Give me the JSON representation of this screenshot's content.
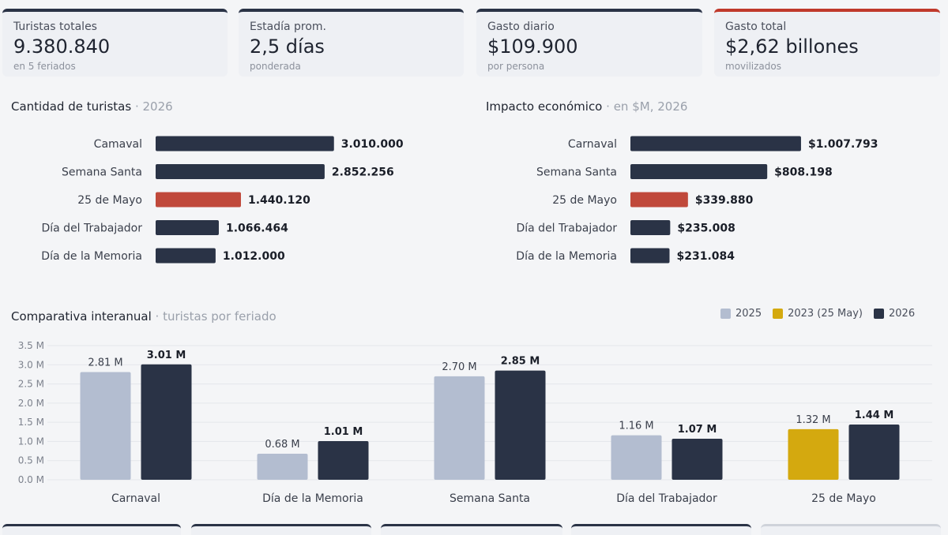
{
  "kpis": [
    {
      "label": "Turistas totales",
      "value": "9.380.840",
      "sub": "en 5 feriados",
      "accent": false
    },
    {
      "label": "Estadía prom.",
      "value": "2,5 días",
      "sub": "ponderada",
      "accent": false
    },
    {
      "label": "Gasto diario",
      "value": "$109.900",
      "sub": "por persona",
      "accent": false
    },
    {
      "label": "Gasto total",
      "value": "$2,62 billones",
      "sub": "movilizados",
      "accent": true
    }
  ],
  "colors": {
    "navy": "#2a3346",
    "red": "#c0493b",
    "light": "#b3bdd0",
    "gold": "#d4a90f",
    "grid": "#e3e6eb"
  },
  "chart_data": [
    {
      "type": "bar",
      "orientation": "horizontal",
      "title": "Cantidad de turistas",
      "subtitle": "2026",
      "categories": [
        "Camaval",
        "Semana Santa",
        "25 de Mayo",
        "Día del Trabajador",
        "Día de la Memoria"
      ],
      "values": [
        3010000,
        2852256,
        1440120,
        1066464,
        1012000
      ],
      "value_labels": [
        "3.010.000",
        "2.852.256",
        "1.440.120",
        "1.066.464",
        "1.012.000"
      ],
      "highlight_index": 2,
      "xlim": [
        0,
        4000000
      ]
    },
    {
      "type": "bar",
      "orientation": "horizontal",
      "title": "Impacto económico",
      "subtitle": "en $M, 2026",
      "categories": [
        "Carnaval",
        "Semana Santa",
        "25 de Mayo",
        "Día del Trabajador",
        "Día de la Memoria"
      ],
      "values": [
        1007793,
        808198,
        339880,
        235008,
        231084
      ],
      "value_labels": [
        "$1.007.793",
        "$808.198",
        "$339.880",
        "$235.008",
        "$231.084"
      ],
      "highlight_index": 2,
      "xlim": [
        0,
        1400000
      ]
    },
    {
      "type": "bar",
      "title": "Comparativa interanual",
      "subtitle": "turistas por feriado",
      "legend": [
        "2025",
        "2023 (25 May)",
        "2026"
      ],
      "legend_position": "top-right",
      "categories": [
        "Carnaval",
        "Día de la Memoria",
        "Semana Santa",
        "Día del Trabajador",
        "25 de Mayo"
      ],
      "series": [
        {
          "name": "2025",
          "values": [
            2.81,
            0.68,
            2.7,
            1.16,
            null
          ],
          "labels": [
            "2.81 M",
            "0.68 M",
            "2.70 M",
            "1.16 M",
            ""
          ]
        },
        {
          "name": "2023 (25 May)",
          "values": [
            null,
            null,
            null,
            null,
            1.32
          ],
          "labels": [
            "",
            "",
            "",
            "",
            "1.32 M"
          ]
        },
        {
          "name": "2026",
          "values": [
            3.01,
            1.01,
            2.85,
            1.07,
            1.44
          ],
          "labels": [
            "3.01 M",
            "1.01 M",
            "2.85 M",
            "1.07 M",
            "1.44 M"
          ]
        }
      ],
      "yticks": [
        "0.0 M",
        "0.5 M",
        "1.0 M",
        "1.5 M",
        "2.0 M",
        "2.5 M",
        "3.0 M",
        "3.5 M"
      ],
      "ylim": [
        0,
        3.5
      ],
      "grid": true
    }
  ]
}
